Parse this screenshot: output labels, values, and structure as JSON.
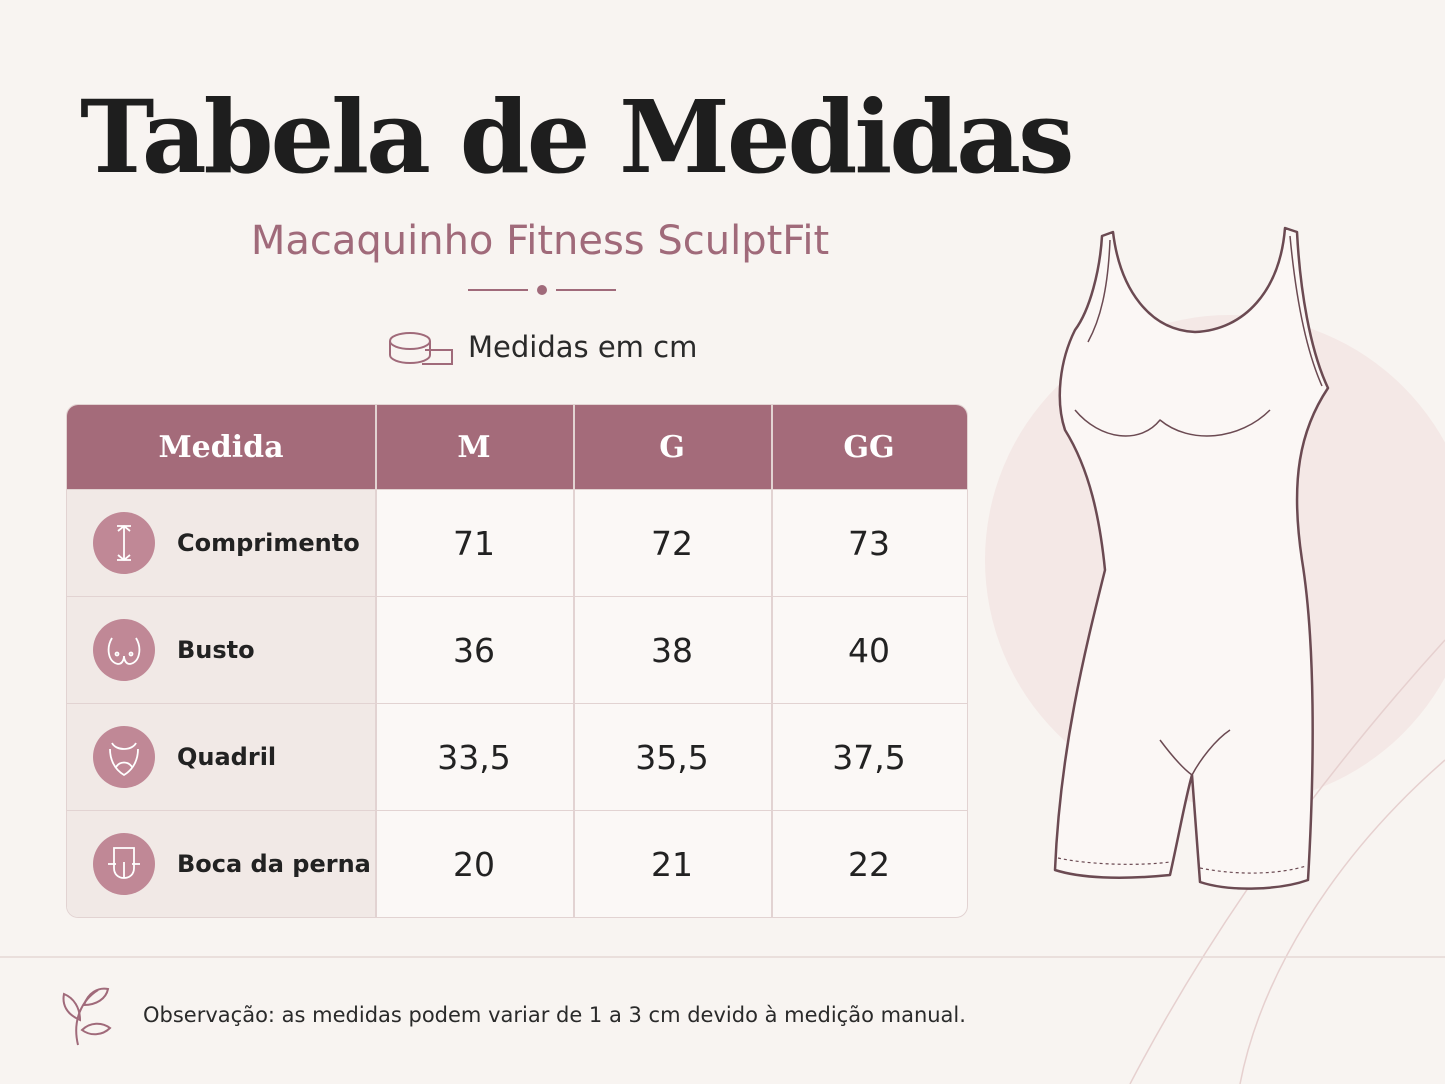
{
  "header": {
    "title": "Tabela de Medidas",
    "subtitle": "Macaquinho Fitness SculptFit",
    "units": "Medidas em cm"
  },
  "table": {
    "columns": [
      "Medida",
      "M",
      "G",
      "GG"
    ],
    "rows": [
      [
        "Comprimento",
        "71",
        "72",
        "73"
      ],
      [
        "Busto",
        "36",
        "38",
        "40"
      ],
      [
        "Quadril",
        "33,5",
        "35,5",
        "37,5"
      ],
      [
        "Boca da perna",
        "20",
        "21",
        "22"
      ]
    ]
  },
  "footer": {
    "note": "Observação: as medidas podem variar de 1 a 3 cm devido à medição manual."
  }
}
